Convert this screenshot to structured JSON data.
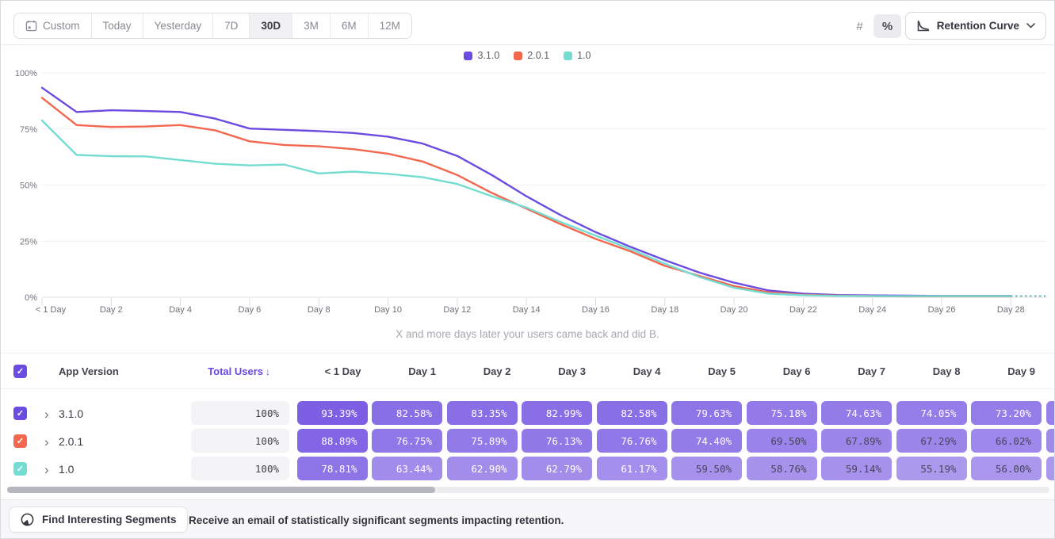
{
  "toolbar": {
    "date_ranges": [
      "Custom",
      "Today",
      "Yesterday",
      "7D",
      "30D",
      "3M",
      "6M",
      "12M"
    ],
    "selected_range": "30D",
    "mode_buttons": [
      {
        "icon": "number-sign-icon",
        "glyph": "#",
        "selected": false
      },
      {
        "icon": "percent-icon",
        "glyph": "%",
        "selected": true
      }
    ],
    "chart_type_label": "Retention Curve"
  },
  "legend": [
    {
      "label": "3.1.0",
      "color": "#6C4BE0"
    },
    {
      "label": "2.0.1",
      "color": "#F2674D"
    },
    {
      "label": "1.0",
      "color": "#75DCD1"
    }
  ],
  "chart_data": {
    "type": "line",
    "title": "",
    "subtitle": "X and more days later your users came back and did B.",
    "xlabel": "",
    "ylabel": "",
    "ylim": [
      0,
      100
    ],
    "grid": true,
    "legend_position": "top-center",
    "y_ticks": [
      "0%",
      "25%",
      "50%",
      "75%",
      "100%"
    ],
    "x_tick_days": [
      0,
      2,
      4,
      6,
      8,
      10,
      12,
      14,
      16,
      18,
      20,
      22,
      24,
      26,
      28
    ],
    "x_tick_labels": [
      "< 1 Day",
      "Day 2",
      "Day 4",
      "Day 6",
      "Day 8",
      "Day 10",
      "Day 12",
      "Day 14",
      "Day 16",
      "Day 18",
      "Day 20",
      "Day 22",
      "Day 24",
      "Day 26",
      "Day 28"
    ],
    "x_days": [
      0,
      1,
      2,
      3,
      4,
      5,
      6,
      7,
      8,
      9,
      10,
      11,
      12,
      13,
      14,
      15,
      16,
      17,
      18,
      19,
      20,
      21,
      22,
      23,
      24,
      25,
      26,
      27,
      28,
      29
    ],
    "dashed_tail_from_day": 28,
    "series": [
      {
        "name": "3.1.0",
        "color": "#6C4BE0",
        "values": [
          93.39,
          82.58,
          83.35,
          82.99,
          82.58,
          79.63,
          75.18,
          74.63,
          74.05,
          73.2,
          71.6,
          68.5,
          63.0,
          54.5,
          45.0,
          36.5,
          29.0,
          22.5,
          16.5,
          11.0,
          6.5,
          3.0,
          1.6,
          1.0,
          0.8,
          0.7,
          0.6,
          0.6,
          0.6,
          0.6
        ]
      },
      {
        "name": "2.0.1",
        "color": "#F2674D",
        "values": [
          88.89,
          76.75,
          75.89,
          76.13,
          76.76,
          74.4,
          69.5,
          67.89,
          67.29,
          66.02,
          64.0,
          60.5,
          54.5,
          46.5,
          39.5,
          32.5,
          26.0,
          20.5,
          14.0,
          9.5,
          5.0,
          2.2,
          1.1,
          0.7,
          0.5,
          0.4,
          0.4,
          0.4,
          0.4,
          0.4
        ]
      },
      {
        "name": "1.0",
        "color": "#75DCD1",
        "values": [
          78.81,
          63.44,
          62.9,
          62.79,
          61.17,
          59.5,
          58.76,
          59.14,
          55.19,
          56.0,
          55.0,
          53.5,
          50.5,
          45.0,
          40.0,
          33.5,
          27.5,
          21.5,
          15.0,
          9.0,
          4.2,
          1.6,
          0.9,
          0.6,
          0.5,
          0.5,
          0.5,
          0.5,
          0.5,
          0.5
        ]
      }
    ]
  },
  "table": {
    "header_checkbox_checked": true,
    "headers": {
      "app_version": "App Version",
      "total_users": "Total Users",
      "sort_arrow": "↓",
      "days": [
        "< 1 Day",
        "Day 1",
        "Day 2",
        "Day 3",
        "Day 4",
        "Day 5",
        "Day 6",
        "Day 7",
        "Day 8",
        "Day 9"
      ]
    },
    "pill_base_color": "#6C4BE0",
    "rows": [
      {
        "name": "3.1.0",
        "color": "#6C4BE0",
        "checked": true,
        "total": "100%",
        "values": [
          93.39,
          82.58,
          83.35,
          82.99,
          82.58,
          79.63,
          75.18,
          74.63,
          74.05,
          73.2
        ],
        "light_text": [
          true,
          true,
          true,
          true,
          true,
          true,
          true,
          true,
          true,
          true
        ]
      },
      {
        "name": "2.0.1",
        "color": "#F2674D",
        "checked": true,
        "total": "100%",
        "values": [
          88.89,
          76.75,
          75.89,
          76.13,
          76.76,
          74.4,
          69.5,
          67.89,
          67.29,
          66.02
        ],
        "light_text": [
          true,
          true,
          true,
          true,
          true,
          true,
          false,
          false,
          false,
          false
        ]
      },
      {
        "name": "1.0",
        "color": "#75DCD1",
        "checked": true,
        "total": "100%",
        "values": [
          78.81,
          63.44,
          62.9,
          62.79,
          61.17,
          59.5,
          58.76,
          59.14,
          55.19,
          56.0
        ],
        "light_text": [
          true,
          true,
          true,
          true,
          true,
          false,
          false,
          false,
          false,
          false
        ]
      }
    ]
  },
  "footer": {
    "button_label": "Find Interesting Segments",
    "message": "Receive an email of statistically significant segments impacting retention."
  }
}
